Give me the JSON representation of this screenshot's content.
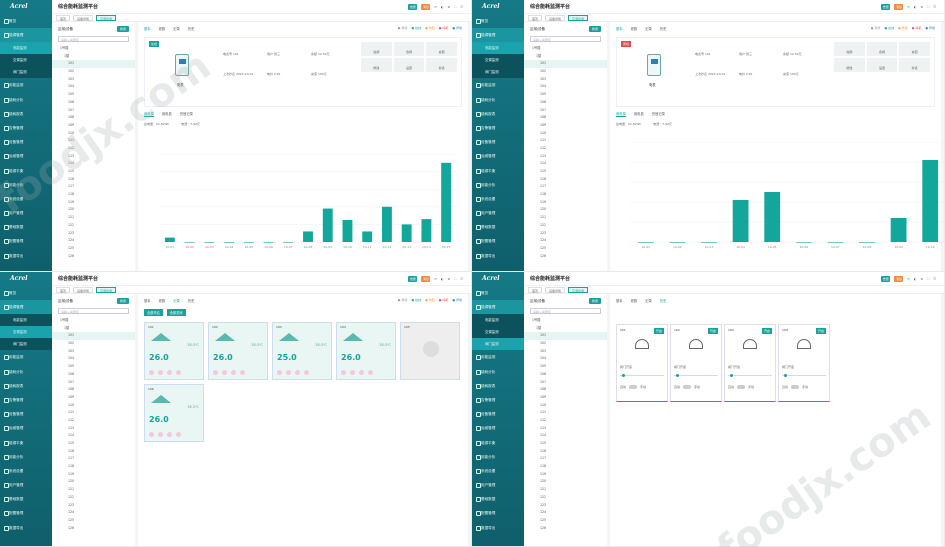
{
  "logo": "Acrel",
  "app_title": "综合能耗监测平台",
  "nav": [
    "概览",
    "能源管理",
    "用能监测",
    "能耗分析",
    "能耗报表",
    "告警管理",
    "设备管理",
    "运维管理",
    "能源平衡",
    "用能分析",
    "系统设置",
    "用户管理",
    "基础数据",
    "配置管理",
    "数据导出"
  ],
  "nav_subs": [
    "电能监测",
    "空调监测",
    "阀门监测"
  ],
  "top_pills": [
    "告警",
    "消息"
  ],
  "tabs": [
    "首页",
    "设备详情",
    "空调监测"
  ],
  "tree": {
    "title": "区域/设备",
    "btn": "新增",
    "search": "请输入关键字",
    "root": "1号楼",
    "floor": "1楼",
    "nodes": [
      "101",
      "102",
      "103",
      "104",
      "105",
      "106",
      "107",
      "108",
      "109",
      "110",
      "111",
      "112",
      "113",
      "114",
      "115",
      "116",
      "117",
      "118",
      "119",
      "120",
      "121",
      "122",
      "123",
      "124",
      "125",
      "126"
    ]
  },
  "legend": [
    "离线",
    "在线",
    "告警",
    "停机",
    "异常"
  ],
  "meter": {
    "tabs": [
      "基本",
      "参数",
      "记录",
      "历史"
    ],
    "name": "电表",
    "badge": "在线",
    "badge_off": "离线",
    "info": [
      "电表号 101",
      "用户 张三",
      "余额 12.50元",
      "上次抄表 2023-10-01",
      "电价 0.61",
      "充值 100元"
    ],
    "buttons": [
      "拉闸",
      "合闸",
      "充值",
      "修改",
      "设置",
      "抄表"
    ],
    "subtabs": [
      "用电量",
      "用电费",
      "充值记录"
    ],
    "stats": [
      "总电量：12.5kWh",
      "电费：7.62元"
    ]
  },
  "chart_data": [
    {
      "type": "bar",
      "categories": [
        "10-01",
        "10-02",
        "10-03",
        "10-04",
        "10-05",
        "10-06",
        "10-07",
        "10-08",
        "10-09",
        "10-10",
        "10-11",
        "10-12",
        "10-13",
        "10-14",
        "10-15"
      ],
      "values": [
        0.5,
        0,
        0,
        0,
        0,
        0,
        0,
        1.2,
        3.8,
        2.5,
        1.2,
        4.0,
        2.0,
        2.6,
        9.0
      ],
      "ylim": [
        0,
        10
      ]
    },
    {
      "type": "bar",
      "categories": [
        "10-01",
        "10-02",
        "10-03",
        "10-04",
        "10-05",
        "10-06",
        "10-07",
        "10-08",
        "10-09",
        "10-10"
      ],
      "values": [
        0,
        0,
        0,
        2.1,
        2.5,
        0,
        0,
        0,
        1.2,
        4.1
      ],
      "ylim": [
        0,
        5
      ]
    }
  ],
  "ac": {
    "btns": [
      "全部开启",
      "全部关闭"
    ],
    "units": [
      {
        "name": "101",
        "temp": "26.0",
        "hum": "38.5℃",
        "off": false
      },
      {
        "name": "102",
        "temp": "26.0",
        "hum": "38.5℃",
        "off": false
      },
      {
        "name": "103",
        "temp": "25.0",
        "hum": "38.5℃",
        "off": false
      },
      {
        "name": "104",
        "temp": "26.0",
        "hum": "38.5℃",
        "off": false
      },
      {
        "name": "105",
        "temp": "",
        "hum": "",
        "off": true
      },
      {
        "name": "106",
        "temp": "26.0",
        "hum": "38.5℃",
        "off": false
      }
    ]
  },
  "valve": {
    "units": [
      "101",
      "102",
      "103",
      "104"
    ],
    "on": "开启",
    "label": "阀门开度",
    "foot": "自动",
    "foot2": "手动"
  },
  "watermark": [
    "foodjx.com",
    "foodjx.com"
  ]
}
